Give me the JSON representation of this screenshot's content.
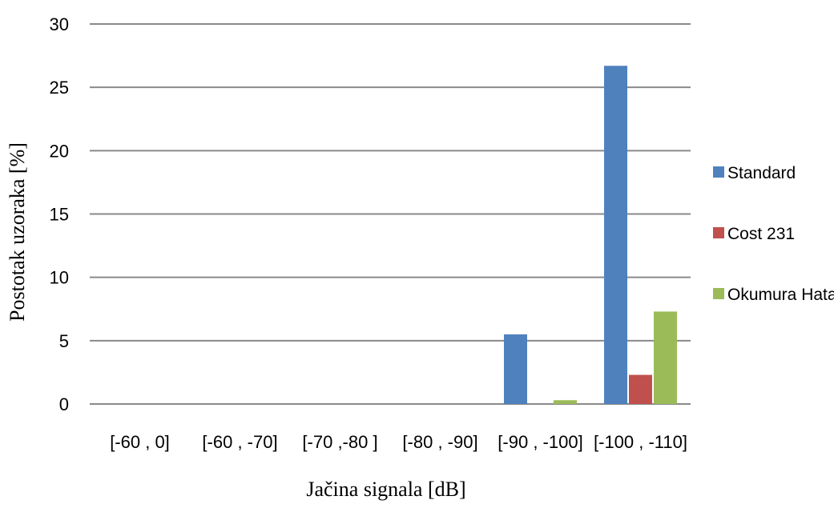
{
  "chart_data": {
    "type": "bar",
    "categories": [
      "[-60 , 0]",
      "[-60 , -70]",
      "[-70 ,-80 ]",
      "[-80 , -90]",
      "[-90 , -100]",
      "[-100 , -110]"
    ],
    "series": [
      {
        "name": "Standard",
        "color": "#4f81bd",
        "values": [
          0,
          0,
          0,
          0,
          5.5,
          26.7
        ]
      },
      {
        "name": "Cost 231",
        "color": "#c0504d",
        "values": [
          0,
          0,
          0,
          0,
          0,
          2.3
        ]
      },
      {
        "name": "Okumura Hata",
        "color": "#9bbb59",
        "values": [
          0,
          0,
          0,
          0,
          0.3,
          7.3
        ]
      }
    ],
    "xlabel": "Jačina signala [dB]",
    "ylabel": "Postotak uzoraka [%]",
    "ylim": [
      0,
      30
    ],
    "yticks": [
      0,
      5,
      10,
      15,
      20,
      25,
      30
    ],
    "grid": true,
    "legend": "right"
  }
}
